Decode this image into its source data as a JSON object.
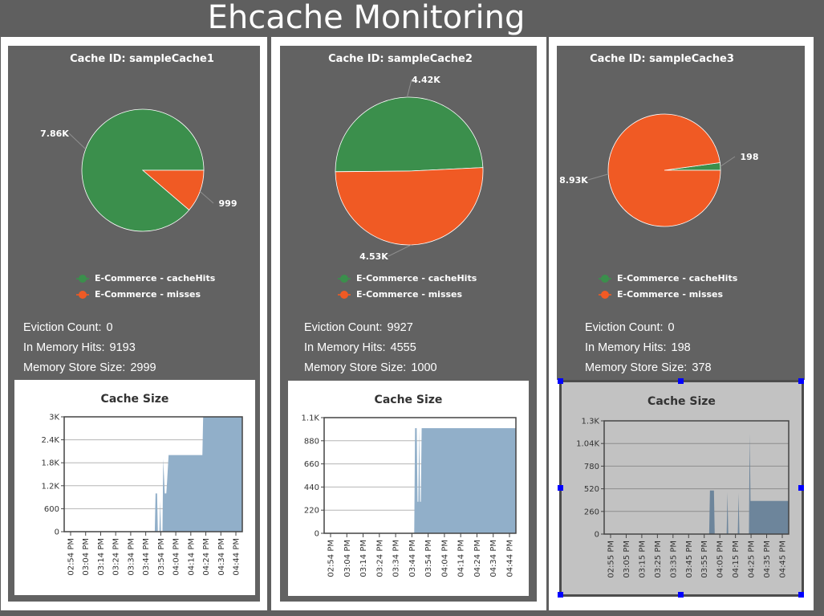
{
  "page": {
    "title": "Ehcache Monitoring"
  },
  "colors": {
    "hits": "#3b8f4c",
    "misses": "#f05a24",
    "area": "#91afc9",
    "area_selected": "#6d859b",
    "panel": "#626262"
  },
  "caches": [
    {
      "title": "Cache ID: sampleCache1",
      "pie_labels": [
        "7.86K",
        "999"
      ],
      "legend": [
        "E-Commerce - cacheHits",
        "E-Commerce - misses"
      ],
      "stats": [
        {
          "label": "Eviction Count:",
          "value": "0"
        },
        {
          "label": "In Memory Hits:",
          "value": "9193"
        },
        {
          "label": "Memory Store Size:",
          "value": "2999"
        }
      ],
      "size_chart_title": "Cache Size"
    },
    {
      "title": "Cache ID: sampleCache2",
      "pie_labels": [
        "4.42K",
        "4.53K"
      ],
      "legend": [
        "E-Commerce - cacheHits",
        "E-Commerce - misses"
      ],
      "stats": [
        {
          "label": "Eviction Count:",
          "value": "9927"
        },
        {
          "label": "In Memory Hits:",
          "value": "4555"
        },
        {
          "label": "Memory Store Size:",
          "value": "1000"
        }
      ],
      "size_chart_title": "Cache Size"
    },
    {
      "title": "Cache ID: sampleCache3",
      "pie_labels": [
        "198",
        "8.93K"
      ],
      "legend": [
        "E-Commerce - cacheHits",
        "E-Commerce - misses"
      ],
      "stats": [
        {
          "label": "Eviction Count:",
          "value": "0"
        },
        {
          "label": "In Memory Hits:",
          "value": "198"
        },
        {
          "label": "Memory Store Size:",
          "value": "378"
        }
      ],
      "size_chart_title": "Cache Size"
    }
  ],
  "chart_data": [
    {
      "type": "pie",
      "title": "Cache ID: sampleCache1",
      "categories": [
        "E-Commerce - cacheHits",
        "E-Commerce - misses"
      ],
      "values": [
        7860,
        999
      ],
      "labels": [
        "7.86K",
        "999"
      ]
    },
    {
      "type": "pie",
      "title": "Cache ID: sampleCache2",
      "categories": [
        "E-Commerce - cacheHits",
        "E-Commerce - misses"
      ],
      "values": [
        4420,
        4530
      ],
      "labels": [
        "4.42K",
        "4.53K"
      ]
    },
    {
      "type": "pie",
      "title": "Cache ID: sampleCache3",
      "categories": [
        "E-Commerce - cacheHits",
        "E-Commerce - misses"
      ],
      "values": [
        198,
        8930
      ],
      "labels": [
        "198",
        "8.93K"
      ]
    },
    {
      "type": "area",
      "title": "Cache Size",
      "x_ticks": [
        "02:54 PM",
        "03:04 PM",
        "03:14 PM",
        "03:24 PM",
        "03:34 PM",
        "03:44 PM",
        "03:54 PM",
        "04:04 PM",
        "04:14 PM",
        "04:24 PM",
        "04:34 PM",
        "04:44 PM"
      ],
      "y_ticks": [
        "0",
        "600",
        "1.2K",
        "1.8K",
        "2.4K",
        "3K"
      ],
      "ylim": [
        0,
        3000
      ],
      "xlim_minutes": [
        0,
        116
      ],
      "points": [
        [
          0,
          0
        ],
        [
          59,
          0
        ],
        [
          59.5,
          1000
        ],
        [
          60.5,
          1000
        ],
        [
          61,
          0
        ],
        [
          62,
          0
        ],
        [
          62.5,
          800
        ],
        [
          63,
          0
        ],
        [
          64,
          0
        ],
        [
          64.5,
          1900
        ],
        [
          65.5,
          1000
        ],
        [
          66.5,
          1000
        ],
        [
          67,
          1300
        ],
        [
          68,
          2000
        ],
        [
          90,
          2000
        ],
        [
          90.5,
          3000
        ],
        [
          116,
          3000
        ]
      ]
    },
    {
      "type": "area",
      "title": "Cache Size",
      "x_ticks": [
        "02:54 PM",
        "03:04 PM",
        "03:14 PM",
        "03:24 PM",
        "03:34 PM",
        "03:44 PM",
        "03:54 PM",
        "04:04 PM",
        "04:14 PM",
        "04:24 PM",
        "04:34 PM",
        "04:44 PM"
      ],
      "y_ticks": [
        "0",
        "220",
        "440",
        "660",
        "880",
        "1.1K"
      ],
      "ylim": [
        0,
        1100
      ],
      "xlim_minutes": [
        0,
        116
      ],
      "points": [
        [
          0,
          0
        ],
        [
          54.5,
          0
        ],
        [
          55,
          1000
        ],
        [
          56,
          1000
        ],
        [
          56.5,
          300
        ],
        [
          57,
          300
        ],
        [
          57.5,
          1000
        ],
        [
          58,
          300
        ],
        [
          58.5,
          300
        ],
        [
          59,
          1000
        ],
        [
          116,
          1000
        ]
      ]
    },
    {
      "type": "area",
      "title": "Cache Size",
      "x_ticks": [
        "02:55 PM",
        "03:05 PM",
        "03:15 PM",
        "03:25 PM",
        "03:35 PM",
        "03:45 PM",
        "03:55 PM",
        "04:05 PM",
        "04:15 PM",
        "04:25 PM",
        "04:35 PM",
        "04:45 PM"
      ],
      "y_ticks": [
        "0",
        "260",
        "520",
        "780",
        "1.04K",
        "1.3K"
      ],
      "ylim": [
        0,
        1300
      ],
      "xlim_minutes": [
        0,
        116
      ],
      "points": [
        [
          0,
          0
        ],
        [
          66,
          0
        ],
        [
          66.5,
          500
        ],
        [
          69,
          500
        ],
        [
          69.5,
          0
        ],
        [
          77,
          0
        ],
        [
          77.5,
          480
        ],
        [
          78,
          0
        ],
        [
          84,
          0
        ],
        [
          84.5,
          470
        ],
        [
          85,
          0
        ],
        [
          91,
          0
        ],
        [
          91.5,
          1150
        ],
        [
          92,
          380
        ],
        [
          116,
          380
        ]
      ]
    }
  ]
}
